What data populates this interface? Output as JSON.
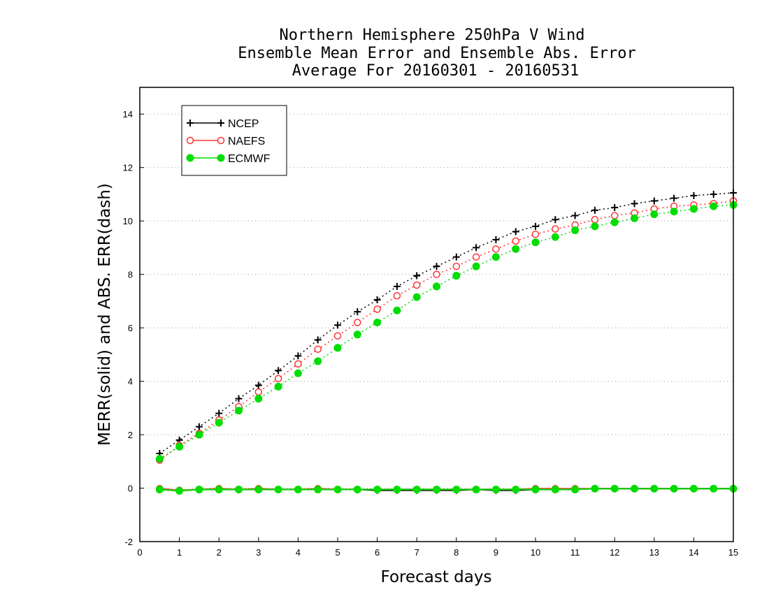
{
  "chart_data": {
    "type": "line",
    "title": [
      "Northern Hemisphere 250hPa V Wind",
      "Ensemble Mean Error and Ensemble Abs. Error",
      "Average For 20160301 - 20160531"
    ],
    "xlabel": "Forecast days",
    "ylabel": "MERR(solid) and ABS. ERR(dash)",
    "xlim": [
      0,
      15
    ],
    "ylim": [
      -2,
      15
    ],
    "xticks": [
      "0",
      "1",
      "2",
      "3",
      "4",
      "5",
      "6",
      "7",
      "8",
      "9",
      "10",
      "11",
      "12",
      "13",
      "14",
      "15"
    ],
    "yticks": [
      "-2",
      "0",
      "2",
      "4",
      "6",
      "8",
      "10",
      "12",
      "14"
    ],
    "ytick_values": [
      -2,
      0,
      2,
      4,
      6,
      8,
      10,
      12,
      14
    ],
    "grid": "horizontal dotted",
    "legend_position": "top-left",
    "x": [
      0.5,
      1,
      1.5,
      2,
      2.5,
      3,
      3.5,
      4,
      4.5,
      5,
      5.5,
      6,
      6.5,
      7,
      7.5,
      8,
      8.5,
      9,
      9.5,
      10,
      10.5,
      11,
      11.5,
      12,
      12.5,
      13,
      13.5,
      14,
      14.5,
      15
    ],
    "series": [
      {
        "name": "NCEP",
        "color": "#000000",
        "marker": "plus",
        "abs_err": [
          1.3,
          1.8,
          2.3,
          2.8,
          3.35,
          3.85,
          4.4,
          4.95,
          5.55,
          6.1,
          6.6,
          7.05,
          7.55,
          7.95,
          8.3,
          8.65,
          9.0,
          9.3,
          9.6,
          9.8,
          10.05,
          10.2,
          10.4,
          10.5,
          10.65,
          10.75,
          10.85,
          10.95,
          11.0,
          11.05
        ],
        "mean_err": [
          -0.05,
          -0.1,
          -0.05,
          -0.05,
          -0.05,
          -0.05,
          -0.05,
          -0.05,
          -0.05,
          -0.05,
          -0.05,
          -0.08,
          -0.08,
          -0.08,
          -0.08,
          -0.08,
          -0.05,
          -0.08,
          -0.08,
          -0.05,
          -0.05,
          -0.05,
          -0.02,
          -0.02,
          -0.02,
          -0.02,
          -0.02,
          -0.02,
          -0.02,
          -0.02
        ]
      },
      {
        "name": "NAEFS",
        "color": "#ff3333",
        "marker": "open-circle",
        "abs_err": [
          1.05,
          1.6,
          2.05,
          2.55,
          3.05,
          3.6,
          4.1,
          4.65,
          5.2,
          5.7,
          6.2,
          6.7,
          7.2,
          7.6,
          8.0,
          8.3,
          8.65,
          8.95,
          9.25,
          9.5,
          9.7,
          9.85,
          10.05,
          10.2,
          10.3,
          10.45,
          10.55,
          10.6,
          10.65,
          10.75
        ],
        "mean_err": [
          -0.02,
          -0.08,
          -0.05,
          -0.02,
          -0.05,
          -0.02,
          -0.05,
          -0.05,
          -0.02,
          -0.05,
          -0.05,
          -0.05,
          -0.05,
          -0.05,
          -0.05,
          -0.05,
          -0.05,
          -0.05,
          -0.05,
          -0.02,
          -0.02,
          -0.02,
          -0.02,
          -0.02,
          -0.02,
          -0.02,
          -0.02,
          -0.02,
          -0.02,
          -0.02
        ]
      },
      {
        "name": "ECMWF",
        "color": "#00dd00",
        "marker": "filled-circle",
        "abs_err": [
          1.1,
          1.55,
          2.0,
          2.45,
          2.9,
          3.35,
          3.8,
          4.3,
          4.75,
          5.25,
          5.75,
          6.2,
          6.65,
          7.15,
          7.55,
          7.95,
          8.3,
          8.65,
          8.95,
          9.2,
          9.4,
          9.65,
          9.8,
          9.95,
          10.1,
          10.25,
          10.35,
          10.45,
          10.55,
          10.6
        ],
        "mean_err": [
          -0.05,
          -0.1,
          -0.05,
          -0.05,
          -0.05,
          -0.05,
          -0.05,
          -0.05,
          -0.05,
          -0.05,
          -0.05,
          -0.05,
          -0.05,
          -0.05,
          -0.05,
          -0.05,
          -0.05,
          -0.05,
          -0.05,
          -0.05,
          -0.05,
          -0.05,
          -0.02,
          -0.02,
          -0.02,
          -0.02,
          -0.02,
          -0.02,
          -0.02,
          -0.02
        ]
      }
    ]
  }
}
